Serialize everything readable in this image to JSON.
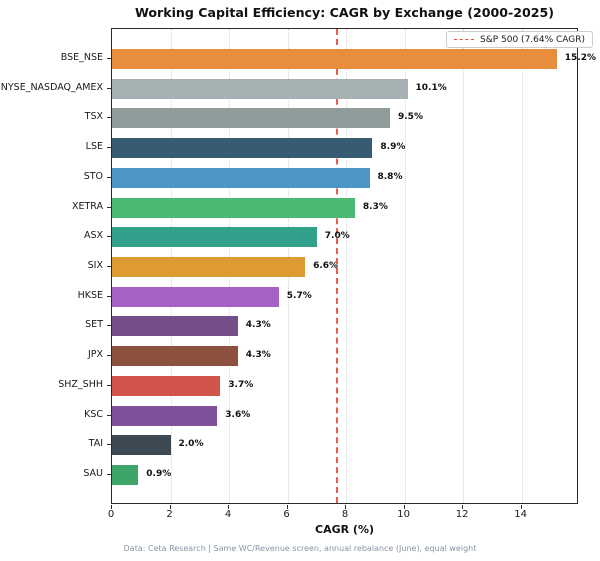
{
  "title": "Working Capital Efficiency: CAGR by Exchange (2000-2025)",
  "footer": "Data: Ceta Research | Same WC/Revenue screen, annual rebalance (June), equal weight",
  "legend": {
    "entry": "S&P 500 (7.64% CAGR)"
  },
  "chart_data": {
    "type": "bar",
    "orientation": "horizontal",
    "title": "Working Capital Efficiency: CAGR by Exchange (2000-2025)",
    "xlabel": "CAGR (%)",
    "ylabel": "",
    "categories": [
      "BSE_NSE",
      "NYSE_NASDAQ_AMEX",
      "TSX",
      "LSE",
      "STO",
      "XETRA",
      "ASX",
      "SIX",
      "HKSE",
      "SET",
      "JPX",
      "SHZ_SHH",
      "KSC",
      "TAI",
      "SAU"
    ],
    "values": [
      15.2,
      10.1,
      9.5,
      8.9,
      8.8,
      8.3,
      7.0,
      6.6,
      5.7,
      4.3,
      4.3,
      3.7,
      3.6,
      2.0,
      0.9
    ],
    "value_labels": [
      "15.2%",
      "10.1%",
      "9.5%",
      "8.9%",
      "8.8%",
      "8.3%",
      "7.0%",
      "6.6%",
      "5.7%",
      "4.3%",
      "4.3%",
      "3.7%",
      "3.6%",
      "2.0%",
      "0.9%"
    ],
    "bar_colors": [
      "#e88c3d",
      "#a5b1b2",
      "#8f9b9b",
      "#375b73",
      "#4d96c8",
      "#4bb873",
      "#33a08c",
      "#df9b33",
      "#a562c4",
      "#734e89",
      "#8c513f",
      "#d1544a",
      "#80519a",
      "#3c4852",
      "#3ea467"
    ],
    "xlim": [
      0,
      15.96
    ],
    "xticks": [
      0,
      2,
      4,
      6,
      8,
      10,
      12,
      14
    ],
    "xtick_labels": [
      "0",
      "2",
      "4",
      "6",
      "8",
      "10",
      "12",
      "14"
    ],
    "grid": "vertical-dotted",
    "legend_position": "upper-right",
    "reference_line": {
      "value": 7.64,
      "label": "S&P 500 (7.64% CAGR)",
      "color": "#e74c3c",
      "style": "dashed"
    }
  }
}
